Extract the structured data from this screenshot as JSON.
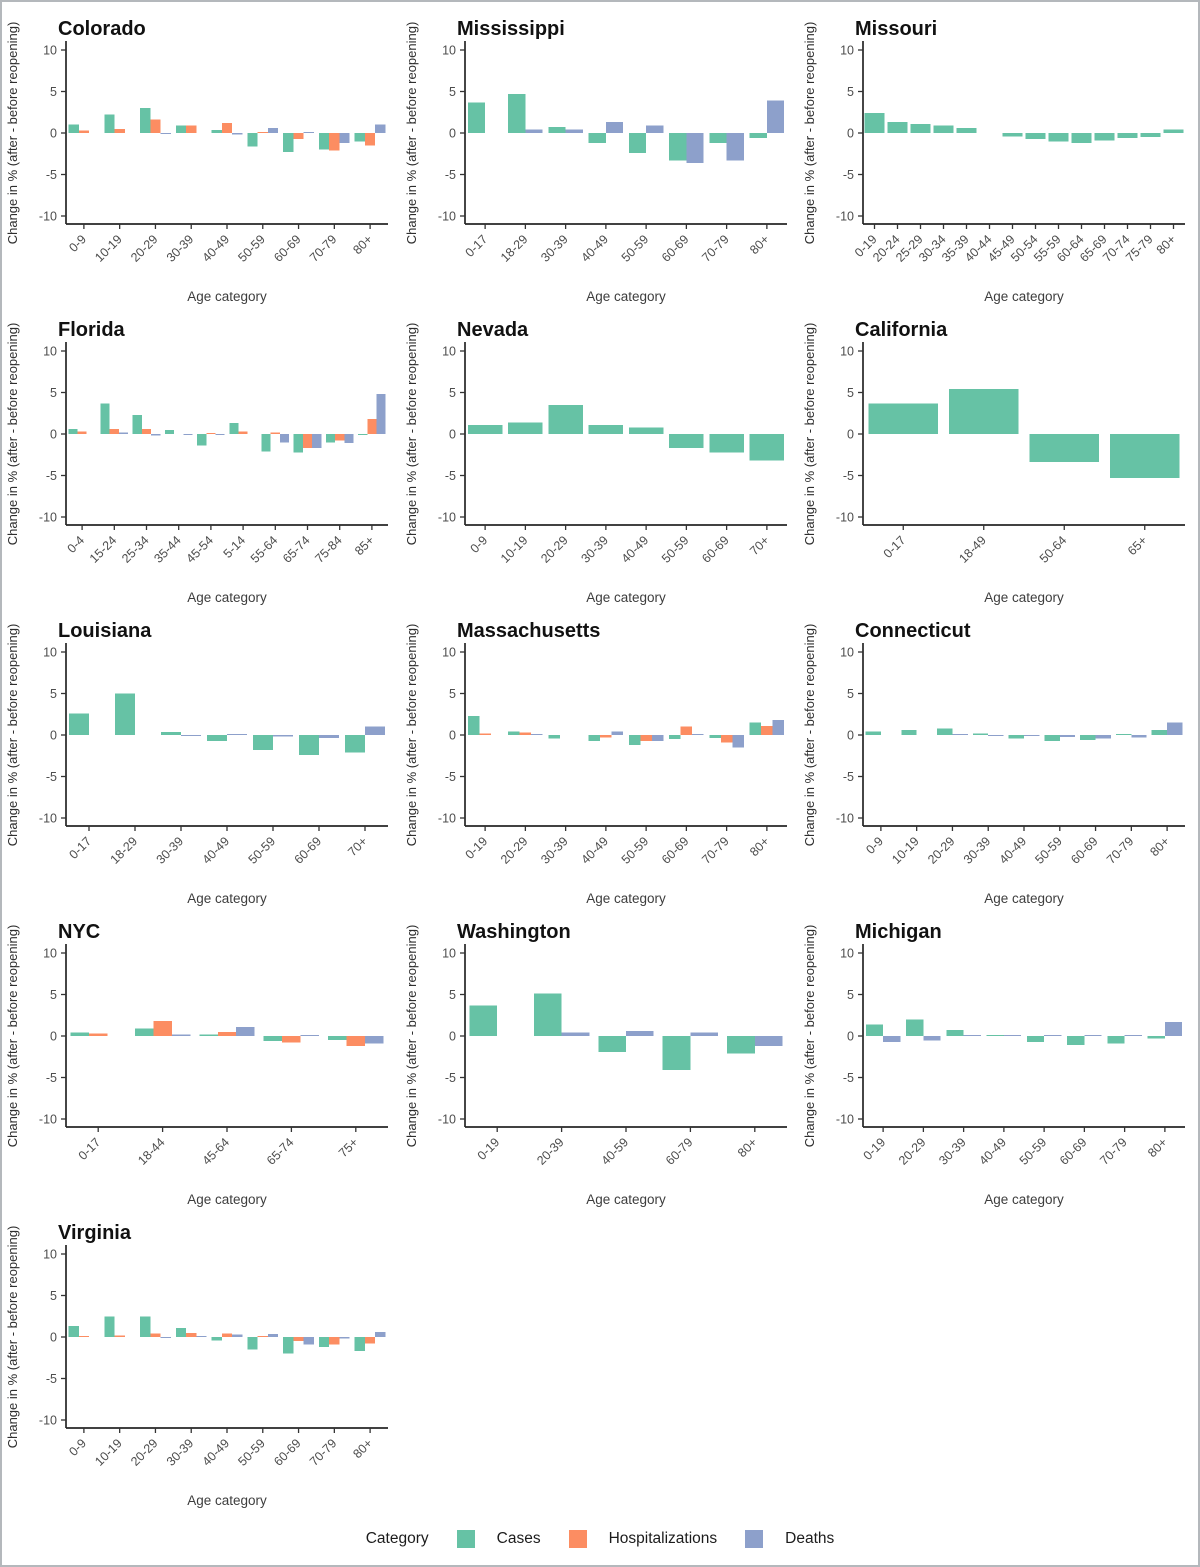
{
  "page": {
    "background": "#ffffff",
    "border_color": "#b4b8bc"
  },
  "axes": {
    "ylabel": "Change in % (after - before reopening)",
    "xlabel": "Age category",
    "ylim": [
      -10,
      10
    ],
    "yticks": [
      -10,
      -5,
      0,
      5,
      10
    ]
  },
  "legend": {
    "title": "Category",
    "items": [
      {
        "label": "Cases",
        "color": "#66C2A5"
      },
      {
        "label": "Hospitalizations",
        "color": "#FC8D62"
      },
      {
        "label": "Deaths",
        "color": "#8DA0CB"
      }
    ]
  },
  "chart_data": [
    {
      "type": "bar",
      "title": "Colorado",
      "categories": [
        "0-9",
        "10-19",
        "20-29",
        "30-39",
        "40-49",
        "50-59",
        "60-69",
        "70-79",
        "80+"
      ],
      "series": [
        {
          "name": "Cases",
          "values": [
            1,
            2.2,
            3,
            0.9,
            0.35,
            -1.6,
            -2.3,
            -2,
            -1
          ]
        },
        {
          "name": "Hospitalizations",
          "values": [
            0.3,
            0.5,
            1.6,
            0.9,
            1.2,
            0.1,
            -0.75,
            -2.1,
            -1.5
          ]
        },
        {
          "name": "Deaths",
          "values": [
            null,
            null,
            -0.15,
            null,
            -0.2,
            0.6,
            0.15,
            -1.2,
            1
          ]
        }
      ],
      "ylim": [
        -10,
        10
      ]
    },
    {
      "type": "bar",
      "title": "Mississippi",
      "categories": [
        "0-17",
        "18-29",
        "30-39",
        "40-49",
        "50-59",
        "60-69",
        "70-79",
        "80+"
      ],
      "series": [
        {
          "name": "Cases",
          "values": [
            3.7,
            4.7,
            0.7,
            -1.2,
            -2.4,
            -3.3,
            -1.2,
            -0.6
          ]
        },
        {
          "name": "Deaths",
          "values": [
            null,
            0.4,
            0.4,
            1.3,
            0.9,
            -3.6,
            -3.3,
            3.9
          ]
        }
      ],
      "ylim": [
        -10,
        10
      ]
    },
    {
      "type": "bar",
      "title": "Missouri",
      "categories": [
        "0-19",
        "20-24",
        "25-29",
        "30-34",
        "35-39",
        "40-44",
        "45-49",
        "50-54",
        "55-59",
        "60-64",
        "65-69",
        "70-74",
        "75-79",
        "80+"
      ],
      "series": [
        {
          "name": "Cases",
          "values": [
            2.4,
            1.3,
            1.1,
            0.9,
            0.6,
            null,
            -0.45,
            -0.7,
            -1,
            -1.2,
            -0.9,
            -0.6,
            -0.5,
            0.4
          ]
        }
      ],
      "ylim": [
        -10,
        10
      ]
    },
    {
      "type": "bar",
      "title": "Florida",
      "categories": [
        "0-4",
        "15-24",
        "25-34",
        "35-44",
        "45-54",
        "5-14",
        "55-64",
        "65-74",
        "75-84",
        "85+"
      ],
      "series": [
        {
          "name": "Cases",
          "values": [
            0.6,
            3.7,
            2.3,
            0.5,
            -1.4,
            1.3,
            -2.1,
            -2.2,
            -1,
            -0.1
          ]
        },
        {
          "name": "Hospitalizations",
          "values": [
            0.3,
            0.6,
            0.6,
            null,
            0.1,
            0.3,
            0.2,
            -1.7,
            -0.8,
            1.8
          ]
        },
        {
          "name": "Deaths",
          "values": [
            null,
            0.2,
            -0.2,
            -0.1,
            -0.1,
            null,
            -1,
            -1.7,
            -1.1,
            4.8
          ]
        }
      ],
      "ylim": [
        -10,
        10
      ]
    },
    {
      "type": "bar",
      "title": "Nevada",
      "categories": [
        "0-9",
        "10-19",
        "20-29",
        "30-39",
        "40-49",
        "50-59",
        "60-69",
        "70+"
      ],
      "series": [
        {
          "name": "Cases",
          "values": [
            1.1,
            1.4,
            3.5,
            1.1,
            0.8,
            -1.7,
            -2.2,
            -3.2
          ]
        }
      ],
      "ylim": [
        -10,
        10
      ]
    },
    {
      "type": "bar",
      "title": "California",
      "categories": [
        "0-17",
        "18-49",
        "50-64",
        "65+"
      ],
      "series": [
        {
          "name": "Cases",
          "values": [
            3.7,
            5.4,
            -3.4,
            -5.3
          ]
        }
      ],
      "ylim": [
        -10,
        10
      ]
    },
    {
      "type": "bar",
      "title": "Louisiana",
      "categories": [
        "0-17",
        "18-29",
        "30-39",
        "40-49",
        "50-59",
        "60-69",
        "70+"
      ],
      "series": [
        {
          "name": "Cases",
          "values": [
            2.6,
            5,
            0.35,
            -0.7,
            -1.8,
            -2.4,
            -2.1
          ]
        },
        {
          "name": "Deaths",
          "values": [
            null,
            null,
            -0.1,
            0.1,
            -0.2,
            -0.35,
            1
          ]
        }
      ],
      "ylim": [
        -10,
        10
      ]
    },
    {
      "type": "bar",
      "title": "Massachusetts",
      "categories": [
        "0-19",
        "20-29",
        "30-39",
        "40-49",
        "50-59",
        "60-69",
        "70-79",
        "80+"
      ],
      "series": [
        {
          "name": "Cases",
          "values": [
            2.3,
            0.4,
            -0.4,
            -0.7,
            -1.2,
            -0.5,
            -0.35,
            1.5
          ]
        },
        {
          "name": "Hospitalizations",
          "values": [
            0.2,
            0.3,
            null,
            -0.3,
            -0.7,
            1,
            -0.9,
            1.1
          ]
        },
        {
          "name": "Deaths",
          "values": [
            null,
            0.15,
            null,
            0.45,
            -0.7,
            0.15,
            -1.5,
            1.8
          ]
        }
      ],
      "ylim": [
        -10,
        10
      ]
    },
    {
      "type": "bar",
      "title": "Connecticut",
      "categories": [
        "0-9",
        "10-19",
        "20-29",
        "30-39",
        "40-49",
        "50-59",
        "60-69",
        "70-79",
        "80+"
      ],
      "series": [
        {
          "name": "Cases",
          "values": [
            0.4,
            0.6,
            0.8,
            0.2,
            -0.4,
            -0.7,
            -0.6,
            0.15,
            0.6
          ]
        },
        {
          "name": "Deaths",
          "values": [
            null,
            null,
            0.15,
            -0.1,
            -0.1,
            -0.25,
            -0.4,
            -0.3,
            1.5
          ]
        }
      ],
      "ylim": [
        -10,
        10
      ]
    },
    {
      "type": "bar",
      "title": "NYC",
      "categories": [
        "0-17",
        "18-44",
        "45-64",
        "65-74",
        "75+"
      ],
      "series": [
        {
          "name": "Cases",
          "values": [
            0.45,
            0.9,
            0.2,
            -0.6,
            -0.5
          ]
        },
        {
          "name": "Hospitalizations",
          "values": [
            0.3,
            1.8,
            0.5,
            -0.8,
            -1.2
          ]
        },
        {
          "name": "Deaths",
          "values": [
            null,
            0.2,
            1.1,
            0.1,
            -0.9
          ]
        }
      ],
      "ylim": [
        -10,
        10
      ]
    },
    {
      "type": "bar",
      "title": "Washington",
      "categories": [
        "0-19",
        "20-39",
        "40-59",
        "60-79",
        "80+"
      ],
      "series": [
        {
          "name": "Cases",
          "values": [
            3.7,
            5.1,
            -1.9,
            -4.1,
            -2.1
          ]
        },
        {
          "name": "Deaths",
          "values": [
            null,
            0.4,
            0.6,
            0.4,
            -1.2
          ]
        }
      ],
      "ylim": [
        -10,
        10
      ]
    },
    {
      "type": "bar",
      "title": "Michigan",
      "categories": [
        "0-19",
        "20-29",
        "30-39",
        "40-49",
        "50-59",
        "60-69",
        "70-79",
        "80+"
      ],
      "series": [
        {
          "name": "Cases",
          "values": [
            1.4,
            2,
            0.7,
            0.1,
            -0.7,
            -1.1,
            -0.9,
            -0.3
          ]
        },
        {
          "name": "Deaths",
          "values": [
            -0.7,
            -0.55,
            0.1,
            0.1,
            0.1,
            0.1,
            0.1,
            1.7
          ]
        }
      ],
      "ylim": [
        -10,
        10
      ]
    },
    {
      "type": "bar",
      "title": "Virginia",
      "categories": [
        "0-9",
        "10-19",
        "20-29",
        "30-39",
        "40-49",
        "50-59",
        "60-69",
        "70-79",
        "80+"
      ],
      "series": [
        {
          "name": "Cases",
          "values": [
            1.3,
            2.5,
            2.5,
            1.1,
            -0.4,
            -1.5,
            -2,
            -1.2,
            -1.7
          ]
        },
        {
          "name": "Hospitalizations",
          "values": [
            0.15,
            0.2,
            0.4,
            0.5,
            0.45,
            0.15,
            -0.5,
            -0.9,
            -0.8
          ]
        },
        {
          "name": "Deaths",
          "values": [
            null,
            null,
            -0.1,
            0.1,
            0.3,
            0.35,
            -0.9,
            -0.2,
            0.6
          ]
        }
      ],
      "ylim": [
        -10,
        10
      ]
    }
  ]
}
